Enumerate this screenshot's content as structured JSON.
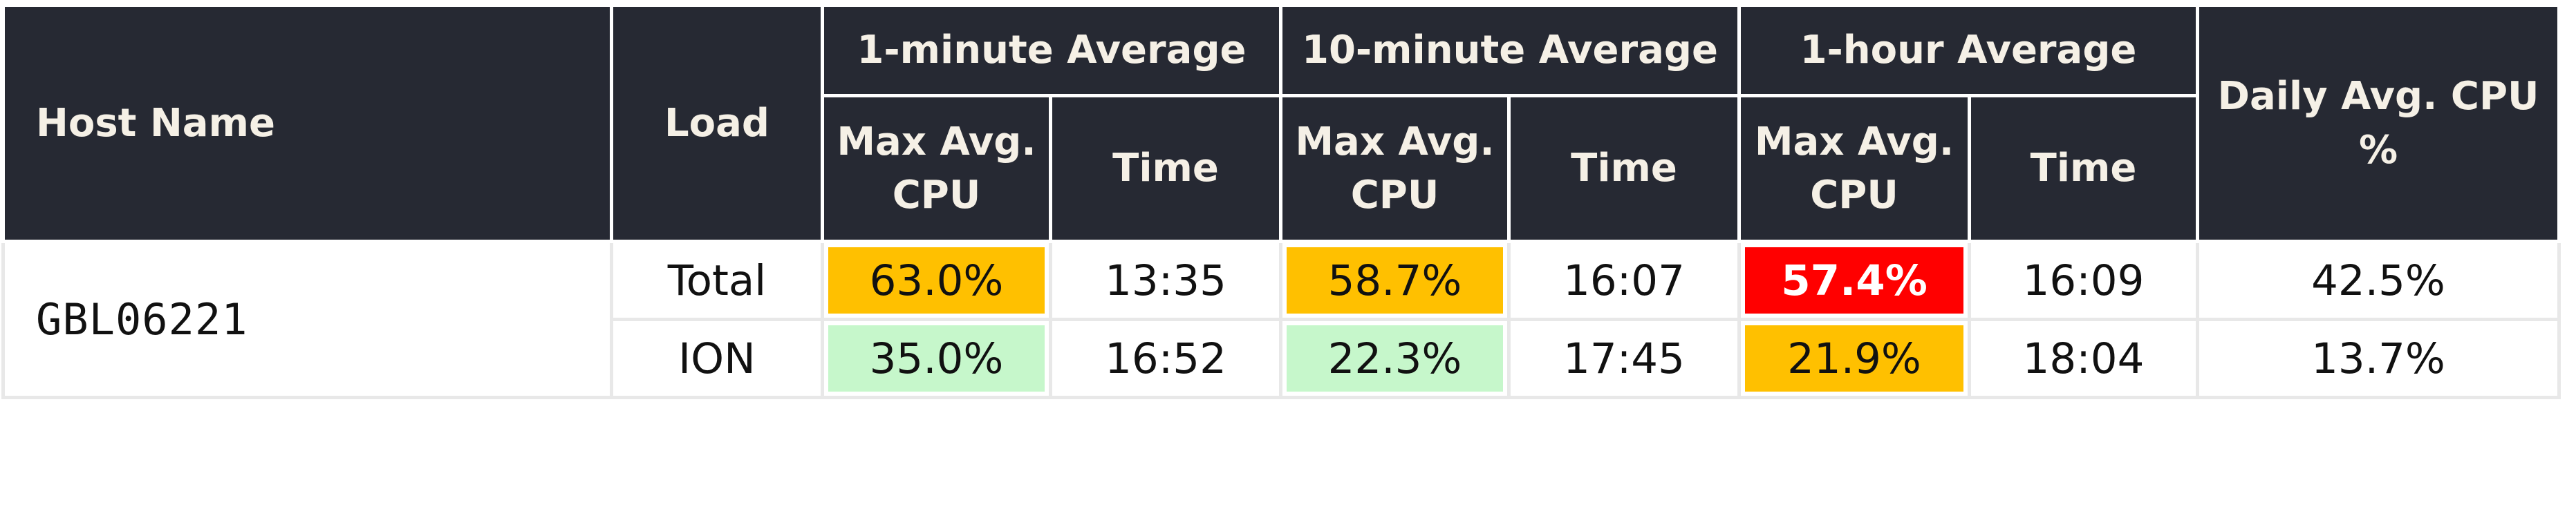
{
  "header": {
    "host_name": "Host Name",
    "load": "Load",
    "groups": [
      "1-minute Average",
      "10-minute Average",
      "1-hour Average"
    ],
    "max_cpu": "Max Avg. CPU",
    "time": "Time",
    "daily": "Daily Avg. CPU %"
  },
  "host": "GBL06221",
  "rows": [
    {
      "load": "Total",
      "min1_cpu": "63.0%",
      "min1_time": "13:35",
      "min10_cpu": "58.7%",
      "min10_time": "16:07",
      "hour1_cpu": "57.4%",
      "hour1_time": "16:09",
      "daily": "42.5%"
    },
    {
      "load": "ION",
      "min1_cpu": "35.0%",
      "min1_time": "16:52",
      "min10_cpu": "22.3%",
      "min10_time": "17:45",
      "hour1_cpu": "21.9%",
      "hour1_time": "18:04",
      "daily": "13.7%"
    }
  ],
  "colors": {
    "header_bg": "#262933",
    "header_text": "#f5f0e6",
    "orange": "#ffc000",
    "green": "#c6f7cb",
    "red": "#ff0000"
  }
}
